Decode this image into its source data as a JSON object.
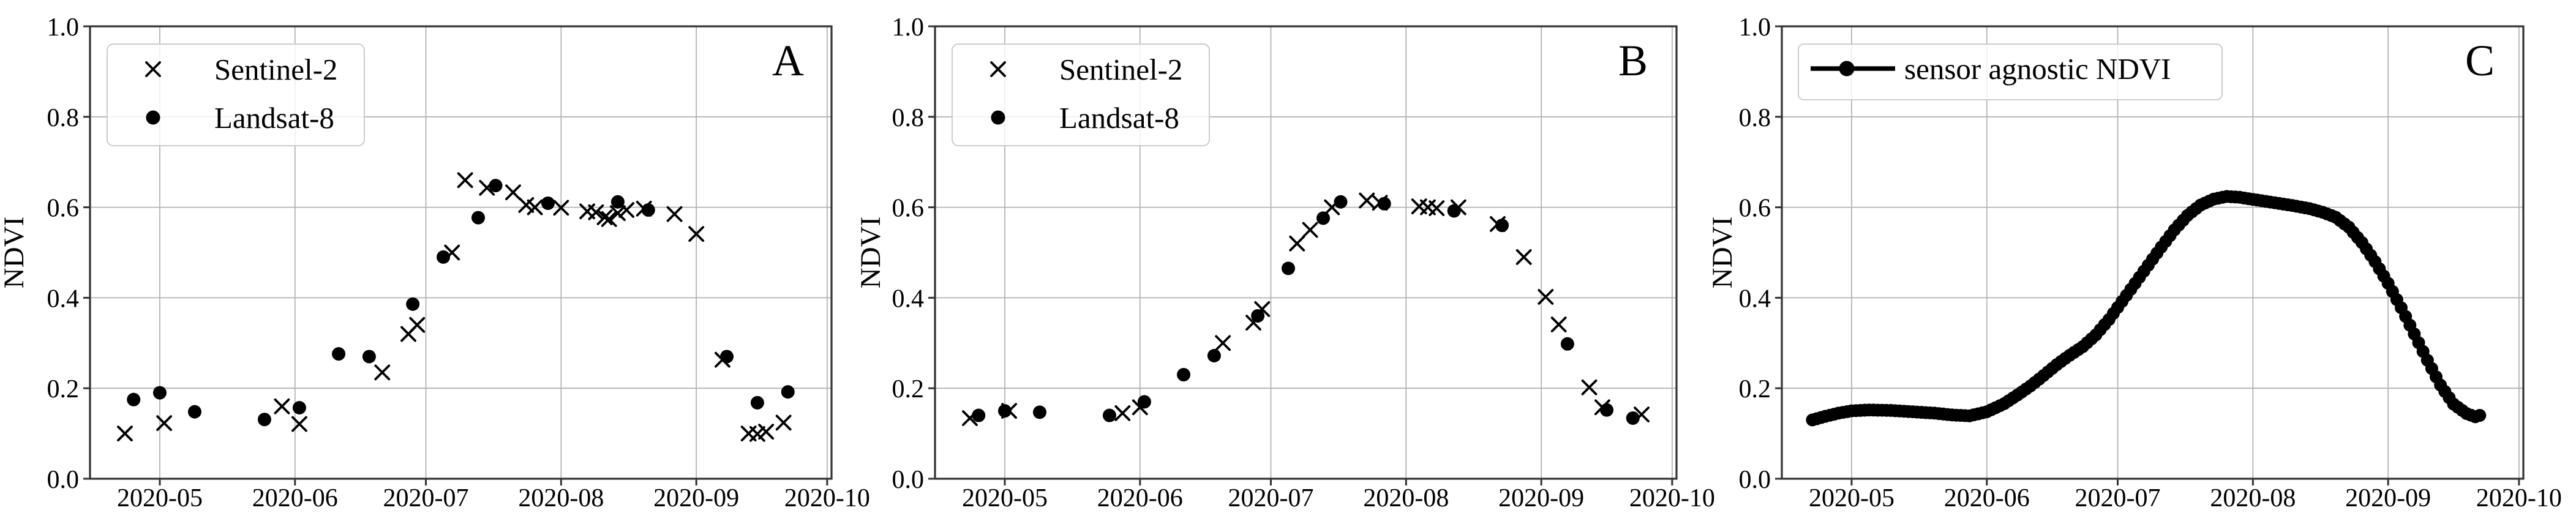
{
  "figure": {
    "background": "#ffffff",
    "grid_color": "#b3b3b3",
    "axis_color": "#333333",
    "marker_color": "#000000",
    "legend_border_color": "#cccccc",
    "ylabel": "NDVI",
    "x_domain": [
      "2020-04-15",
      "2020-10-02"
    ],
    "y_domain": [
      0,
      1
    ],
    "x_ticks": [
      {
        "date": "2020-05-01",
        "label": "2020-05"
      },
      {
        "date": "2020-06-01",
        "label": "2020-06"
      },
      {
        "date": "2020-07-01",
        "label": "2020-07"
      },
      {
        "date": "2020-08-01",
        "label": "2020-08"
      },
      {
        "date": "2020-09-01",
        "label": "2020-09"
      },
      {
        "date": "2020-10-01",
        "label": "2020-10"
      }
    ],
    "y_ticks": [
      {
        "value": 0.0,
        "label": "0.0"
      },
      {
        "value": 0.2,
        "label": "0.2"
      },
      {
        "value": 0.4,
        "label": "0.4"
      },
      {
        "value": 0.6,
        "label": "0.6"
      },
      {
        "value": 0.8,
        "label": "0.8"
      },
      {
        "value": 1.0,
        "label": "1.0"
      }
    ]
  },
  "chart_data": [
    {
      "panel_label": "A",
      "type": "scatter",
      "ylabel": "NDVI",
      "xlim": [
        "2020-04-15",
        "2020-10-02"
      ],
      "ylim": [
        0,
        1
      ],
      "grid": true,
      "legend_position": "upper left",
      "series": [
        {
          "name": "Sentinel-2",
          "marker": "x",
          "color": "#000000",
          "points": [
            [
              "2020-04-23",
              0.1
            ],
            [
              "2020-05-02",
              0.123
            ],
            [
              "2020-05-29",
              0.16
            ],
            [
              "2020-06-02",
              0.121
            ],
            [
              "2020-06-21",
              0.235
            ],
            [
              "2020-06-27",
              0.32
            ],
            [
              "2020-06-29",
              0.34
            ],
            [
              "2020-07-07",
              0.5
            ],
            [
              "2020-07-10",
              0.66
            ],
            [
              "2020-07-15",
              0.643
            ],
            [
              "2020-07-21",
              0.633
            ],
            [
              "2020-07-24",
              0.605
            ],
            [
              "2020-07-26",
              0.6
            ],
            [
              "2020-08-01",
              0.599
            ],
            [
              "2020-08-07",
              0.591
            ],
            [
              "2020-08-09",
              0.589
            ],
            [
              "2020-08-11",
              0.578
            ],
            [
              "2020-08-12",
              0.574
            ],
            [
              "2020-08-14",
              0.587
            ],
            [
              "2020-08-16",
              0.594
            ],
            [
              "2020-08-20",
              0.597
            ],
            [
              "2020-08-27",
              0.585
            ],
            [
              "2020-09-01",
              0.541
            ],
            [
              "2020-09-07",
              0.263
            ],
            [
              "2020-09-13",
              0.1
            ],
            [
              "2020-09-15",
              0.099
            ],
            [
              "2020-09-17",
              0.104
            ],
            [
              "2020-09-21",
              0.124
            ]
          ]
        },
        {
          "name": "Landsat-8",
          "marker": "circle",
          "color": "#000000",
          "points": [
            [
              "2020-04-25",
              0.175
            ],
            [
              "2020-05-01",
              0.19
            ],
            [
              "2020-05-09",
              0.148
            ],
            [
              "2020-05-25",
              0.131
            ],
            [
              "2020-06-02",
              0.157
            ],
            [
              "2020-06-11",
              0.276
            ],
            [
              "2020-06-18",
              0.27
            ],
            [
              "2020-06-28",
              0.386
            ],
            [
              "2020-07-05",
              0.49
            ],
            [
              "2020-07-13",
              0.577
            ],
            [
              "2020-07-17",
              0.648
            ],
            [
              "2020-07-29",
              0.609
            ],
            [
              "2020-08-14",
              0.612
            ],
            [
              "2020-08-21",
              0.594
            ],
            [
              "2020-09-08",
              0.27
            ],
            [
              "2020-09-15",
              0.168
            ],
            [
              "2020-09-22",
              0.192
            ]
          ]
        }
      ]
    },
    {
      "panel_label": "B",
      "type": "scatter",
      "ylabel": "NDVI",
      "xlim": [
        "2020-04-15",
        "2020-10-02"
      ],
      "ylim": [
        0,
        1
      ],
      "grid": true,
      "legend_position": "upper left",
      "series": [
        {
          "name": "Sentinel-2",
          "marker": "x",
          "color": "#000000",
          "points": [
            [
              "2020-04-23",
              0.134
            ],
            [
              "2020-05-02",
              0.15
            ],
            [
              "2020-05-28",
              0.145
            ],
            [
              "2020-06-01",
              0.158
            ],
            [
              "2020-06-20",
              0.3
            ],
            [
              "2020-06-27",
              0.345
            ],
            [
              "2020-06-29",
              0.375
            ],
            [
              "2020-07-07",
              0.52
            ],
            [
              "2020-07-10",
              0.55
            ],
            [
              "2020-07-15",
              0.6
            ],
            [
              "2020-07-23",
              0.615
            ],
            [
              "2020-07-26",
              0.61
            ],
            [
              "2020-08-04",
              0.602
            ],
            [
              "2020-08-06",
              0.6
            ],
            [
              "2020-08-08",
              0.598
            ],
            [
              "2020-08-13",
              0.6
            ],
            [
              "2020-08-22",
              0.563
            ],
            [
              "2020-08-28",
              0.49
            ],
            [
              "2020-09-02",
              0.402
            ],
            [
              "2020-09-05",
              0.341
            ],
            [
              "2020-09-12",
              0.202
            ],
            [
              "2020-09-15",
              0.158
            ],
            [
              "2020-09-24",
              0.142
            ]
          ]
        },
        {
          "name": "Landsat-8",
          "marker": "circle",
          "color": "#000000",
          "points": [
            [
              "2020-04-25",
              0.14
            ],
            [
              "2020-05-01",
              0.15
            ],
            [
              "2020-05-09",
              0.147
            ],
            [
              "2020-05-25",
              0.14
            ],
            [
              "2020-06-02",
              0.17
            ],
            [
              "2020-06-11",
              0.23
            ],
            [
              "2020-06-18",
              0.272
            ],
            [
              "2020-06-28",
              0.36
            ],
            [
              "2020-07-05",
              0.465
            ],
            [
              "2020-07-13",
              0.576
            ],
            [
              "2020-07-17",
              0.612
            ],
            [
              "2020-07-27",
              0.608
            ],
            [
              "2020-08-12",
              0.592
            ],
            [
              "2020-08-23",
              0.56
            ],
            [
              "2020-09-07",
              0.298
            ],
            [
              "2020-09-16",
              0.152
            ],
            [
              "2020-09-22",
              0.134
            ]
          ]
        }
      ]
    },
    {
      "panel_label": "C",
      "type": "line",
      "ylabel": "NDVI",
      "xlim": [
        "2020-04-15",
        "2020-10-02"
      ],
      "ylim": [
        0,
        1
      ],
      "grid": true,
      "legend_position": "upper left",
      "series": [
        {
          "name": "sensor agnostic NDVI",
          "marker": "circle-line",
          "color": "#000000",
          "points": [
            [
              "2020-04-22",
              0.13
            ],
            [
              "2020-04-25",
              0.138
            ],
            [
              "2020-04-28",
              0.145
            ],
            [
              "2020-05-01",
              0.15
            ],
            [
              "2020-05-05",
              0.152
            ],
            [
              "2020-05-10",
              0.151
            ],
            [
              "2020-05-15",
              0.148
            ],
            [
              "2020-05-20",
              0.145
            ],
            [
              "2020-05-24",
              0.141
            ],
            [
              "2020-05-28",
              0.139
            ],
            [
              "2020-06-01",
              0.148
            ],
            [
              "2020-06-05",
              0.166
            ],
            [
              "2020-06-08",
              0.185
            ],
            [
              "2020-06-11",
              0.205
            ],
            [
              "2020-06-14",
              0.228
            ],
            [
              "2020-06-17",
              0.252
            ],
            [
              "2020-06-20",
              0.273
            ],
            [
              "2020-06-23",
              0.292
            ],
            [
              "2020-06-26",
              0.318
            ],
            [
              "2020-06-29",
              0.352
            ],
            [
              "2020-07-02",
              0.392
            ],
            [
              "2020-07-05",
              0.432
            ],
            [
              "2020-07-08",
              0.472
            ],
            [
              "2020-07-11",
              0.512
            ],
            [
              "2020-07-14",
              0.55
            ],
            [
              "2020-07-17",
              0.582
            ],
            [
              "2020-07-20",
              0.605
            ],
            [
              "2020-07-23",
              0.618
            ],
            [
              "2020-07-26",
              0.624
            ],
            [
              "2020-07-29",
              0.622
            ],
            [
              "2020-08-02",
              0.616
            ],
            [
              "2020-08-06",
              0.61
            ],
            [
              "2020-08-10",
              0.604
            ],
            [
              "2020-08-14",
              0.597
            ],
            [
              "2020-08-17",
              0.589
            ],
            [
              "2020-08-20",
              0.578
            ],
            [
              "2020-08-23",
              0.556
            ],
            [
              "2020-08-26",
              0.522
            ],
            [
              "2020-08-29",
              0.48
            ],
            [
              "2020-09-01",
              0.432
            ],
            [
              "2020-09-04",
              0.378
            ],
            [
              "2020-09-07",
              0.32
            ],
            [
              "2020-09-10",
              0.262
            ],
            [
              "2020-09-13",
              0.207
            ],
            [
              "2020-09-16",
              0.165
            ],
            [
              "2020-09-19",
              0.144
            ],
            [
              "2020-09-21",
              0.137
            ],
            [
              "2020-09-22",
              0.14
            ]
          ]
        }
      ]
    }
  ]
}
